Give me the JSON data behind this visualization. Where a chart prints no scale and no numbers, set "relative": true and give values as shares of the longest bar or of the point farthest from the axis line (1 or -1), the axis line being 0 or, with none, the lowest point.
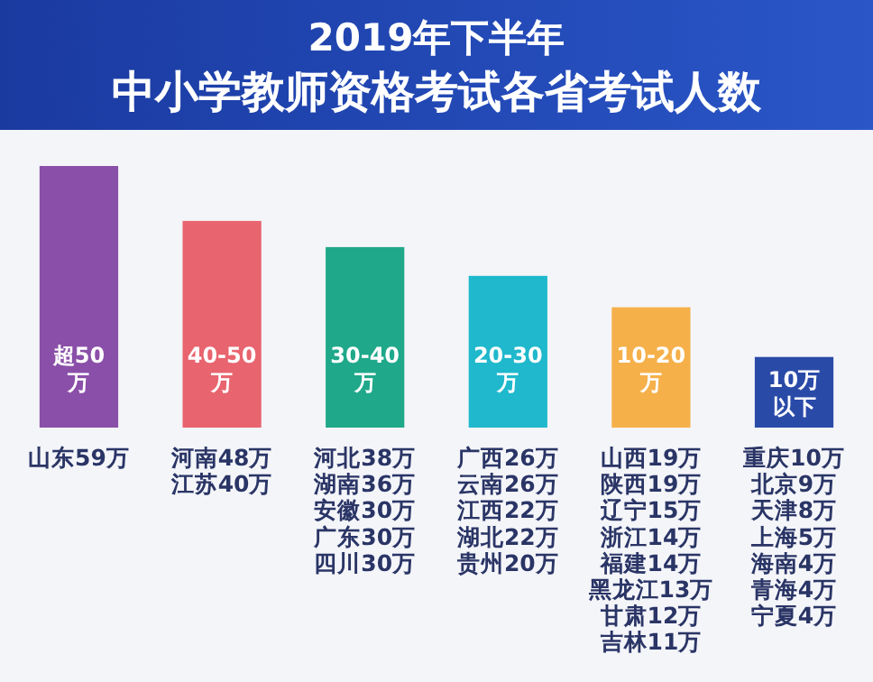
{
  "chart_data": {
    "type": "bar",
    "relative": true,
    "title": "2019年下半年",
    "subtitle": "中小学教师资格考试各省考试人数",
    "categories": [
      "超50万",
      "40-50万",
      "30-40万",
      "20-30万",
      "10-20万",
      "10万以下"
    ],
    "values": [
      1,
      0.79,
      0.69,
      0.58,
      0.46,
      0.27
    ],
    "colors": [
      "#8a4fa8",
      "#e8646e",
      "#1fa88a",
      "#1fb8cc",
      "#f5b04a",
      "#2a4aa8"
    ],
    "annotations": [
      "山东59万",
      "河南48万江苏40万",
      "河北38万湖南36万安徽30万广东30万四川30万",
      "广西26万云南26万江西22万湖北22万贵州20万",
      "山西19万陕西19万辽宁15万浙江14万福建14万黑龙江13万甘肃12万吉林11万",
      "重庆10万北京9万天津8万上海5万海南4万青海4万宁夏4万"
    ]
  }
}
